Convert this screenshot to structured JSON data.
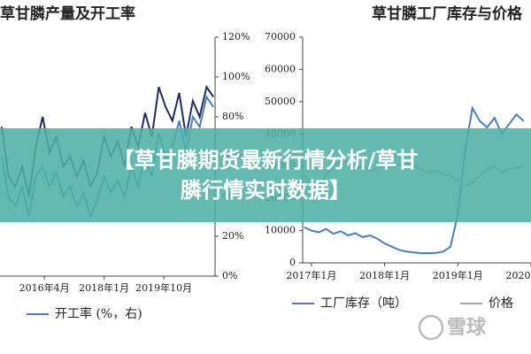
{
  "chart_data": [
    {
      "type": "line",
      "title": "草甘膦产量及开工率",
      "x": [
        2015.0,
        2015.2,
        2015.4,
        2015.6,
        2015.8,
        2016.0,
        2016.2,
        2016.4,
        2016.6,
        2016.8,
        2017.0,
        2017.2,
        2017.4,
        2017.6,
        2017.8,
        2018.0,
        2018.2,
        2018.4,
        2018.6,
        2018.8,
        2019.0,
        2019.2,
        2019.4,
        2019.6,
        2019.8,
        2020.0,
        2020.2,
        2020.4,
        2020.6,
        2020.8,
        2021.0,
        2021.2
      ],
      "series": [
        {
          "color": "#1f2d5c",
          "values": [
            75,
            50,
            45,
            55,
            40,
            65,
            80,
            62,
            70,
            55,
            60,
            50,
            58,
            45,
            52,
            70,
            60,
            68,
            55,
            75,
            65,
            82,
            70,
            95,
            85,
            78,
            92,
            70,
            88,
            80,
            95,
            90
          ]
        },
        {
          "name": "开工率 (%，右)",
          "color": "#4a7ec0",
          "values": [
            60,
            40,
            35,
            45,
            30,
            50,
            55,
            45,
            52,
            40,
            45,
            35,
            42,
            30,
            38,
            50,
            42,
            48,
            40,
            55,
            45,
            60,
            50,
            72,
            60,
            65,
            78,
            62,
            80,
            75,
            90,
            85
          ]
        }
      ],
      "xlim": [
        2014.95,
        2021.25
      ],
      "xticks": [
        {
          "value": 2016.25,
          "label": "2016年4月"
        },
        {
          "value": 2018.0,
          "label": "2018年1月"
        },
        {
          "value": 2019.75,
          "label": "2019年10月"
        }
      ],
      "ylim": [
        0,
        120
      ],
      "yticks": [
        {
          "value": 0,
          "label": "0%"
        },
        {
          "value": 20,
          "label": "20%"
        },
        {
          "value": 40,
          "label": "40%"
        },
        {
          "value": 60,
          "label": "60%"
        },
        {
          "value": 80,
          "label": "80%"
        },
        {
          "value": 100,
          "label": "100%"
        },
        {
          "value": 120,
          "label": "120%"
        }
      ],
      "grid": false
    },
    {
      "type": "line",
      "title": "草甘膦工厂库存与价格",
      "x": [
        2016.9,
        2017.0,
        2017.1,
        2017.2,
        2017.3,
        2017.4,
        2017.5,
        2017.6,
        2017.7,
        2017.8,
        2017.9,
        2018.0,
        2018.1,
        2018.2,
        2018.3,
        2018.4,
        2018.5,
        2018.6,
        2018.7,
        2018.8,
        2018.9,
        2019.0,
        2019.1,
        2019.2,
        2019.3,
        2019.4,
        2019.5,
        2019.6,
        2019.7,
        2019.8,
        2019.9
      ],
      "series": [
        {
          "name": "工厂库存（吨）",
          "color": "#4a7ec0",
          "values": [
            11000,
            10000,
            9500,
            10500,
            9000,
            9800,
            8500,
            9200,
            8000,
            8500,
            7500,
            6000,
            5000,
            4000,
            3500,
            3200,
            3000,
            3000,
            3100,
            3500,
            5000,
            15000,
            35000,
            48000,
            44000,
            42000,
            45000,
            40000,
            43000,
            46000,
            44000
          ]
        },
        {
          "name": "价格",
          "color": "#a6a6a6",
          "values": [
            27000,
            25000,
            24000,
            27000,
            30000,
            31500,
            31000,
            29000,
            30000,
            28500,
            29000,
            30000,
            29500,
            30500,
            31000,
            30000,
            29000,
            28000,
            28500,
            27500,
            27000,
            25500,
            24000,
            25000,
            27000,
            29000,
            30000,
            28000,
            29000,
            29500,
            30000
          ]
        }
      ],
      "xlim": [
        2016.88,
        2020.0
      ],
      "xticks": [
        {
          "value": 2017.0,
          "label": "2017年1月"
        },
        {
          "value": 2018.0,
          "label": "2018年1月"
        },
        {
          "value": 2019.0,
          "label": "2019年1月"
        },
        {
          "value": 2020.0,
          "label": "2020年1月"
        }
      ],
      "ylim": [
        0,
        70000
      ],
      "yticks": [
        0,
        10000,
        20000,
        30000,
        40000,
        50000,
        60000,
        70000
      ],
      "grid": false
    }
  ],
  "banner": {
    "lines": [
      "【草甘膦期货最新行情分析/草甘",
      "膦行情实时数据】"
    ]
  },
  "watermark": "雪球"
}
